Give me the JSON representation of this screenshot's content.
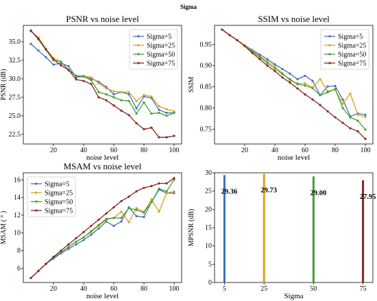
{
  "figure": {
    "title": "Sigma"
  },
  "colors": {
    "s5": "#3f6fbf",
    "s25": "#d9a21b",
    "s50": "#3f9f2f",
    "s75": "#8b2323"
  },
  "chart_data": [
    {
      "type": "line",
      "title": "PSNR vs noise level",
      "xlabel": "noise level",
      "ylabel": "PSNR (dB)",
      "xlim": [
        0,
        105
      ],
      "ylim": [
        21.2,
        37.2
      ],
      "xticks": [
        20,
        40,
        60,
        80,
        100
      ],
      "yticks": [
        22.5,
        25.0,
        27.5,
        30.0,
        32.5,
        35.0
      ],
      "ytick_labels": [
        "22.5",
        "25.0",
        "27.5",
        "30.0",
        "32.5",
        "35.0"
      ],
      "legend": "top-right",
      "x": [
        5,
        10,
        15,
        20,
        25,
        30,
        35,
        40,
        45,
        50,
        55,
        60,
        65,
        70,
        75,
        80,
        85,
        90,
        95,
        100
      ],
      "series": [
        {
          "name": "Sigma=5",
          "color": "s5",
          "values": [
            34.7,
            33.8,
            32.9,
            31.9,
            32.1,
            31.7,
            30.2,
            30.3,
            30.0,
            29.6,
            28.9,
            27.9,
            28.2,
            27.9,
            26.0,
            27.6,
            27.4,
            25.8,
            25.4,
            25.4
          ]
        },
        {
          "name": "Sigma=25",
          "color": "s25",
          "values": [
            36.4,
            35.6,
            34.0,
            32.8,
            32.3,
            31.1,
            30.4,
            30.4,
            30.2,
            29.4,
            28.7,
            28.3,
            28.2,
            28.2,
            27.0,
            27.8,
            27.6,
            26.3,
            25.9,
            25.6
          ]
        },
        {
          "name": "Sigma=50",
          "color": "s50",
          "values": [
            36.5,
            35.3,
            33.9,
            32.5,
            32.3,
            31.2,
            30.4,
            30.3,
            29.8,
            28.2,
            27.9,
            27.5,
            27.1,
            27.0,
            25.3,
            26.8,
            25.3,
            25.4,
            25.0,
            25.4
          ]
        },
        {
          "name": "Sigma=75",
          "color": "s75",
          "values": [
            36.5,
            35.4,
            34.0,
            32.6,
            31.8,
            31.2,
            29.9,
            29.7,
            29.3,
            27.5,
            27.1,
            26.4,
            25.7,
            25.1,
            24.0,
            23.2,
            23.4,
            22.1,
            22.1,
            22.3
          ]
        }
      ]
    },
    {
      "type": "line",
      "title": "SSIM vs noise level",
      "xlabel": "noise level",
      "ylabel": "SSIM",
      "xlim": [
        0,
        105
      ],
      "ylim": [
        0.715,
        0.995
      ],
      "xticks": [
        20,
        40,
        60,
        80,
        100
      ],
      "yticks": [
        0.75,
        0.8,
        0.85,
        0.9,
        0.95
      ],
      "ytick_labels": [
        "0.75",
        "0.80",
        "0.85",
        "0.90",
        "0.95"
      ],
      "legend": "top-right",
      "x": [
        5,
        10,
        15,
        20,
        25,
        30,
        35,
        40,
        45,
        50,
        55,
        60,
        65,
        70,
        75,
        80,
        85,
        90,
        95,
        100
      ],
      "series": [
        {
          "name": "Sigma=5",
          "color": "s5",
          "values": [
            0.985,
            0.972,
            0.96,
            0.948,
            0.937,
            0.926,
            0.915,
            0.903,
            0.892,
            0.881,
            0.868,
            0.876,
            0.864,
            0.83,
            0.851,
            0.852,
            0.82,
            0.78,
            0.787,
            0.784
          ]
        },
        {
          "name": "Sigma=25",
          "color": "s25",
          "values": [
            0.985,
            0.972,
            0.96,
            0.948,
            0.935,
            0.922,
            0.91,
            0.898,
            0.882,
            0.865,
            0.858,
            0.858,
            0.848,
            0.868,
            0.84,
            0.843,
            0.81,
            0.834,
            0.784,
            0.779
          ]
        },
        {
          "name": "Sigma=50",
          "color": "s50",
          "values": [
            0.985,
            0.972,
            0.96,
            0.947,
            0.933,
            0.92,
            0.906,
            0.893,
            0.88,
            0.868,
            0.856,
            0.853,
            0.847,
            0.83,
            0.837,
            0.845,
            0.8,
            0.778,
            0.77,
            0.749
          ]
        },
        {
          "name": "Sigma=75",
          "color": "s75",
          "values": [
            0.985,
            0.972,
            0.96,
            0.946,
            0.93,
            0.915,
            0.9,
            0.887,
            0.872,
            0.86,
            0.846,
            0.832,
            0.82,
            0.807,
            0.792,
            0.778,
            0.765,
            0.752,
            0.745,
            0.727
          ]
        }
      ]
    },
    {
      "type": "line",
      "title": "MSAM vs noise level",
      "xlabel": "noise level",
      "ylabel": "MSAM ( ° )",
      "xlim": [
        0,
        105
      ],
      "ylim": [
        4.4,
        16.8
      ],
      "xticks": [
        20,
        40,
        60,
        80,
        100
      ],
      "yticks": [
        6,
        8,
        10,
        12,
        14,
        16
      ],
      "ytick_labels": [
        "6",
        "8",
        "10",
        "12",
        "14",
        "16"
      ],
      "legend": "top-left",
      "x": [
        5,
        10,
        15,
        20,
        25,
        30,
        35,
        40,
        45,
        50,
        55,
        60,
        65,
        70,
        75,
        80,
        85,
        90,
        95,
        100
      ],
      "series": [
        {
          "name": "Sigma=5",
          "color": "s5",
          "values": [
            4.9,
            5.7,
            6.5,
            7.1,
            7.7,
            8.2,
            8.7,
            9.2,
            9.8,
            10.5,
            11.3,
            10.8,
            11.3,
            12.9,
            11.9,
            11.8,
            13.5,
            14.9,
            14.5,
            14.5
          ]
        },
        {
          "name": "Sigma=25",
          "color": "s25",
          "values": [
            4.9,
            5.7,
            6.5,
            7.2,
            7.8,
            8.4,
            9.0,
            9.5,
            10.1,
            10.8,
            11.5,
            11.7,
            12.4,
            11.2,
            12.8,
            12.4,
            13.8,
            12.4,
            14.5,
            14.7
          ]
        },
        {
          "name": "Sigma=50",
          "color": "s50",
          "values": [
            4.9,
            5.7,
            6.5,
            7.2,
            7.8,
            8.4,
            9.0,
            9.5,
            10.2,
            10.9,
            11.6,
            11.7,
            11.7,
            12.8,
            12.6,
            12.3,
            13.5,
            15.0,
            14.7,
            16.0
          ]
        },
        {
          "name": "Sigma=75",
          "color": "s75",
          "values": [
            4.9,
            5.7,
            6.5,
            7.3,
            8.0,
            8.7,
            9.4,
            10.1,
            10.8,
            11.5,
            12.2,
            12.9,
            13.6,
            14.1,
            14.7,
            15.1,
            15.3,
            15.6,
            15.6,
            16.2
          ]
        }
      ]
    },
    {
      "type": "bar",
      "title": "",
      "xlabel": "Sigma",
      "ylabel": "MPSNR (dB)",
      "xlim": [
        0,
        80
      ],
      "ylim": [
        0,
        30
      ],
      "xticks": [
        5,
        25,
        50,
        75
      ],
      "yticks": [
        0,
        5,
        10,
        15,
        20,
        25,
        30
      ],
      "ytick_labels": [
        "0",
        "5",
        "10",
        "15",
        "20",
        "25",
        "30"
      ],
      "categories": [
        5,
        25,
        50,
        75
      ],
      "values": [
        29.36,
        29.73,
        29.0,
        27.95
      ],
      "value_labels": [
        "29.36",
        "29.73",
        "29.00",
        "27.95"
      ],
      "colors": [
        "s5",
        "s25",
        "s50",
        "s75"
      ]
    }
  ]
}
